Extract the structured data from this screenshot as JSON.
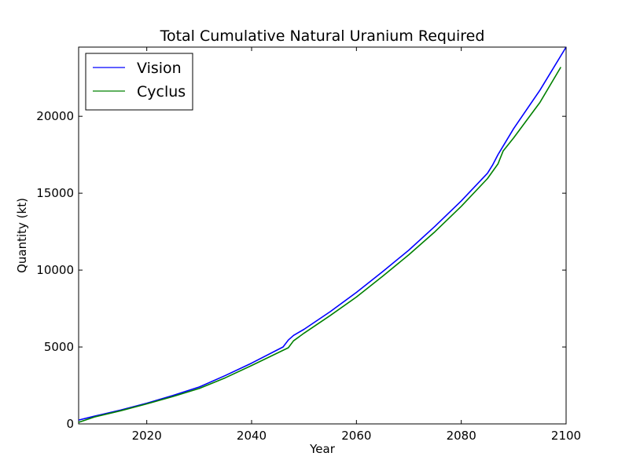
{
  "chart_data": {
    "type": "line",
    "title": "Total Cumulative Natural Uranium Required",
    "xlabel": "Year",
    "ylabel": "Quantity (kt)",
    "xlim": [
      2007,
      2100
    ],
    "ylim": [
      0,
      24500
    ],
    "x_ticks": [
      2020,
      2040,
      2060,
      2080,
      2100
    ],
    "y_ticks": [
      0,
      5000,
      10000,
      15000,
      20000
    ],
    "grid": false,
    "legend": "top-left",
    "series": [
      {
        "name": "Vision",
        "color": "#0000ff",
        "x": [
          2007,
          2010,
          2015,
          2020,
          2025,
          2030,
          2035,
          2040,
          2046,
          2047,
          2048,
          2050,
          2055,
          2060,
          2065,
          2070,
          2075,
          2080,
          2085,
          2086,
          2087,
          2090,
          2095,
          2100
        ],
        "y": [
          250,
          500,
          900,
          1350,
          1850,
          2400,
          3150,
          3950,
          5000,
          5450,
          5750,
          6150,
          7300,
          8550,
          9900,
          11300,
          12850,
          14500,
          16300,
          16850,
          17500,
          19200,
          21700,
          24500
        ]
      },
      {
        "name": "Cyclus",
        "color": "#008000",
        "x": [
          2007,
          2010,
          2015,
          2020,
          2025,
          2030,
          2035,
          2040,
          2047,
          2048,
          2050,
          2055,
          2060,
          2065,
          2070,
          2075,
          2080,
          2085,
          2087,
          2088,
          2090,
          2095,
          2099
        ],
        "y": [
          100,
          450,
          850,
          1300,
          1780,
          2300,
          3000,
          3800,
          4950,
          5400,
          5900,
          7050,
          8250,
          9600,
          11000,
          12500,
          14150,
          15950,
          16900,
          17750,
          18600,
          20900,
          23200
        ]
      }
    ]
  }
}
